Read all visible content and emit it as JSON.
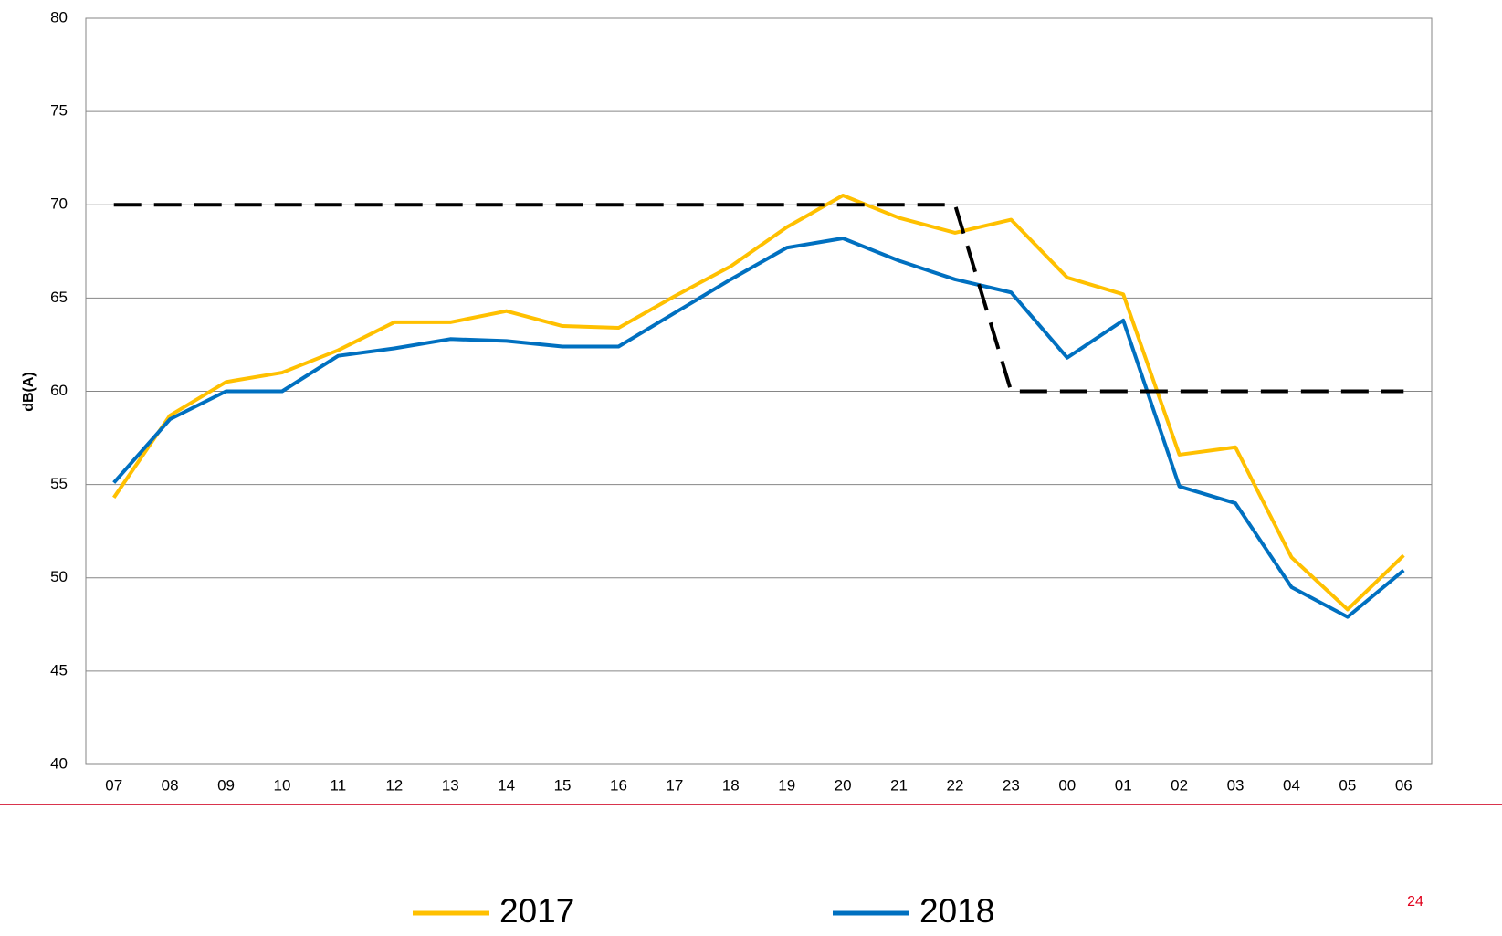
{
  "chart_data": {
    "type": "line",
    "y_label": "dB(A)",
    "categories": [
      "07",
      "08",
      "09",
      "10",
      "11",
      "12",
      "13",
      "14",
      "15",
      "16",
      "17",
      "18",
      "19",
      "20",
      "21",
      "22",
      "23",
      "00",
      "01",
      "02",
      "03",
      "04",
      "05",
      "06"
    ],
    "series": [
      {
        "name": "2017",
        "color": "#ffc000",
        "values": [
          54.3,
          58.7,
          60.5,
          61.0,
          62.2,
          63.7,
          63.7,
          64.3,
          63.5,
          63.4,
          65.1,
          66.7,
          68.8,
          70.5,
          69.3,
          68.5,
          69.2,
          66.1,
          65.2,
          56.6,
          57.0,
          51.1,
          48.3,
          51.2
        ]
      },
      {
        "name": "2018",
        "color": "#0070c0",
        "values": [
          55.1,
          58.5,
          60.0,
          60.0,
          61.9,
          62.3,
          62.8,
          62.7,
          62.4,
          62.4,
          64.2,
          66.0,
          67.7,
          68.2,
          67.0,
          66.0,
          65.3,
          61.8,
          63.8,
          54.9,
          54.0,
          49.5,
          47.9,
          50.4
        ]
      },
      {
        "color": "#000000",
        "dashed": true,
        "values": [
          70,
          70,
          70,
          70,
          70,
          70,
          70,
          70,
          70,
          70,
          70,
          70,
          70,
          70,
          70,
          70,
          60,
          60,
          60,
          60,
          60,
          60,
          60,
          60
        ]
      }
    ],
    "ylim": [
      40,
      80
    ],
    "yticks": [
      40,
      45,
      50,
      55,
      60,
      65,
      70,
      75,
      80
    ],
    "grid": true,
    "legend": "bottom"
  },
  "page_number": "24"
}
